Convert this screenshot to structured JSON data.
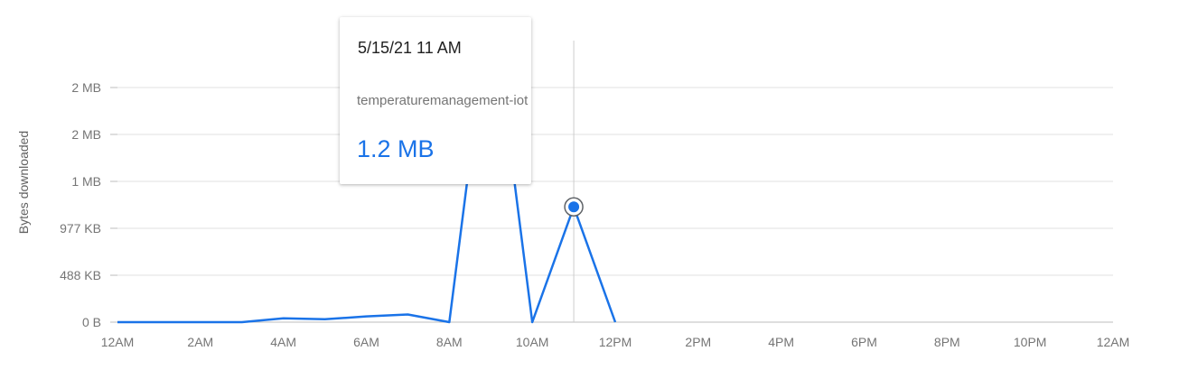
{
  "chart_data": {
    "type": "line",
    "ylabel": "Bytes downloaded",
    "xlabel": "",
    "x_tick_labels": [
      "12AM",
      "2AM",
      "4AM",
      "6AM",
      "8AM",
      "10AM",
      "12PM",
      "2PM",
      "4PM",
      "6PM",
      "8PM",
      "10PM",
      "12AM"
    ],
    "y_tick_labels": [
      "0 B",
      "488 KB",
      "977 KB",
      "1 MB",
      "2 MB",
      "2 MB"
    ],
    "y_tick_values_kb": [
      0,
      488,
      977,
      1465,
      1954,
      2442
    ],
    "x_range_hours": [
      0,
      24
    ],
    "y_range_kb": [
      0,
      2442
    ],
    "grid": true,
    "series": [
      {
        "name": "temperaturemanagement-iot",
        "color": "#1a73e8",
        "x_hours": [
          0,
          1,
          2,
          3,
          4,
          5,
          6,
          7,
          8,
          8.5,
          9,
          9.5,
          10,
          11,
          12
        ],
        "values_kb": [
          0,
          0,
          0,
          0,
          40,
          30,
          60,
          80,
          0,
          1700,
          2700,
          1700,
          0,
          1200,
          0
        ]
      }
    ],
    "highlight": {
      "x_hours": 11,
      "value_kb": 1200
    }
  },
  "tooltip": {
    "date": "5/15/21 11 AM",
    "series_name": "temperaturemanagement-iot",
    "value": "1.2 MB"
  }
}
